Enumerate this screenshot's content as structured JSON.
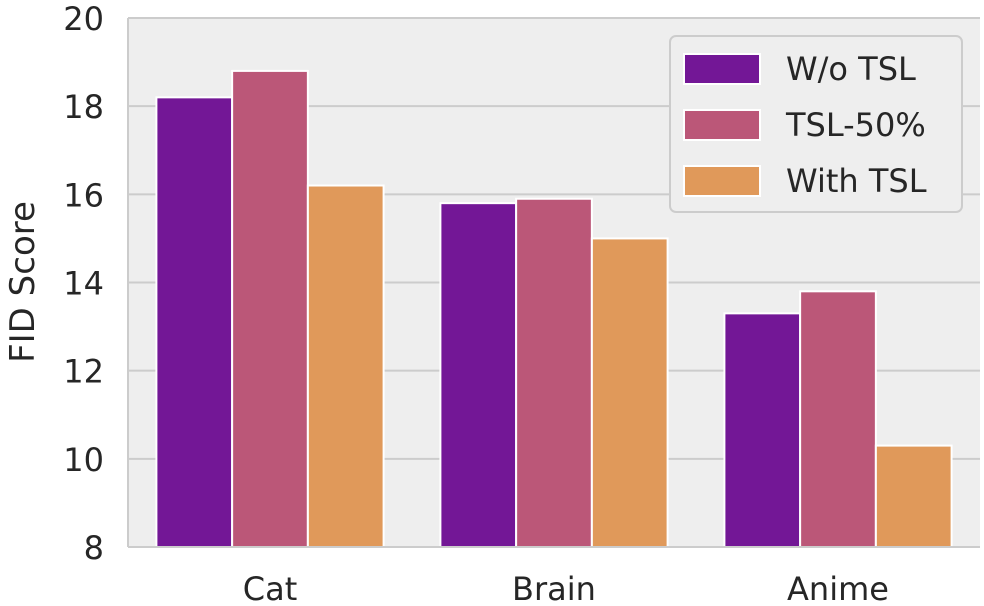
{
  "chart_data": {
    "type": "bar",
    "title": "",
    "xlabel": "",
    "ylabel": "FID Score",
    "ylim": [
      8,
      20
    ],
    "yticks": [
      8,
      10,
      12,
      14,
      16,
      18,
      20
    ],
    "grid": true,
    "legend_position": "top-right",
    "categories": [
      "Cat",
      "Brain",
      "Anime"
    ],
    "series": [
      {
        "name": "W/o TSL",
        "color": "#731796",
        "values": [
          18.2,
          15.8,
          13.3
        ]
      },
      {
        "name": "TSL-50%",
        "color": "#bb5778",
        "values": [
          18.8,
          15.9,
          13.8
        ]
      },
      {
        "name": "With TSL",
        "color": "#e0995a",
        "values": [
          16.2,
          15.0,
          10.3
        ]
      }
    ]
  }
}
